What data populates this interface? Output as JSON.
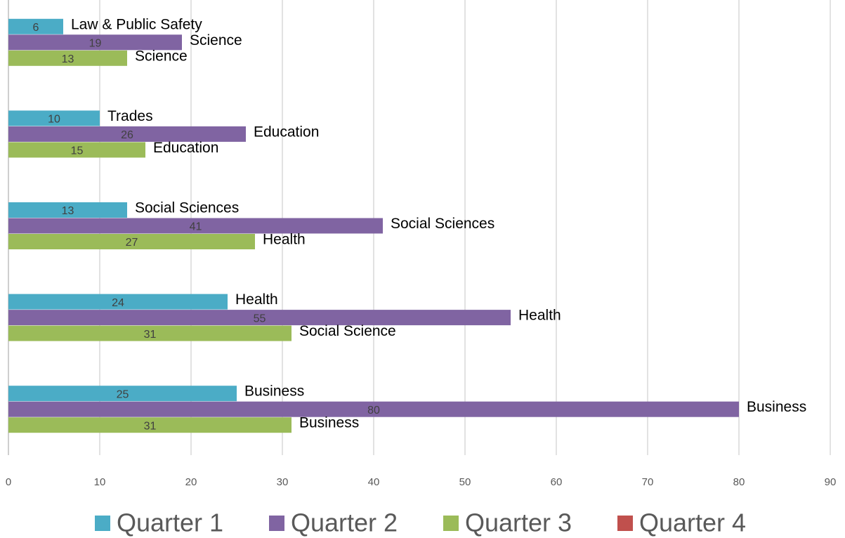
{
  "chart_data": {
    "type": "bar",
    "orientation": "horizontal",
    "categories": [
      null,
      null,
      null,
      null,
      null
    ],
    "series": [
      {
        "name": "Quarter 1",
        "color": "#4bacc6",
        "values": [
          6,
          10,
          13,
          24,
          25
        ],
        "bar_labels": [
          "Law & Public Safety",
          "Trades",
          "Social Sciences",
          "Health",
          "Business"
        ]
      },
      {
        "name": "Quarter 2",
        "color": "#8064a2",
        "values": [
          19,
          26,
          41,
          55,
          80
        ],
        "bar_labels": [
          "Science",
          "Education",
          "Social Sciences",
          "Health",
          "Business"
        ]
      },
      {
        "name": "Quarter 3",
        "color": "#9bbb59",
        "values": [
          13,
          15,
          27,
          31,
          31
        ],
        "bar_labels": [
          "Science",
          "Education",
          "Health",
          "Social Science",
          "Business"
        ]
      },
      {
        "name": "Quarter 4",
        "color": "#c0504d",
        "values": [
          null,
          null,
          null,
          null,
          null
        ]
      }
    ],
    "xlim": [
      0,
      90
    ],
    "xticks": [
      0,
      10,
      20,
      30,
      40,
      50,
      60,
      70,
      80,
      90
    ],
    "grid": true,
    "legend": "bottom"
  }
}
